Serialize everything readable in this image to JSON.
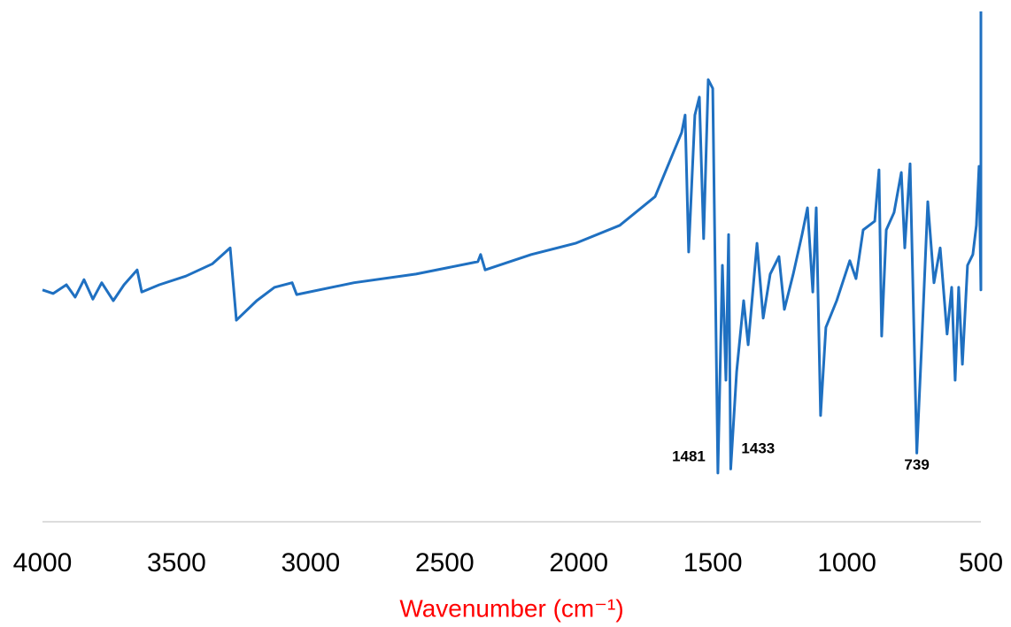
{
  "chart_data": {
    "type": "line",
    "xlabel": "Wavenumber (cm⁻¹)",
    "xlim": [
      4000,
      500
    ],
    "xticks": [
      4000,
      3500,
      3000,
      2500,
      2000,
      1500,
      1000,
      500
    ],
    "ylim": [
      0,
      100
    ],
    "color": "#1f70c1",
    "x": [
      4000,
      3960,
      3911,
      3878,
      3845,
      3812,
      3779,
      3736,
      3696,
      3647,
      3630,
      3564,
      3465,
      3366,
      3300,
      3277,
      3201,
      3135,
      3069,
      3052,
      2838,
      2607,
      2376,
      2366,
      2349,
      2177,
      2012,
      1847,
      1715,
      1616,
      1603,
      1590,
      1567,
      1550,
      1534,
      1517,
      1500,
      1481,
      1464,
      1451,
      1441,
      1433,
      1411,
      1385,
      1368,
      1335,
      1312,
      1286,
      1253,
      1233,
      1200,
      1167,
      1147,
      1127,
      1114,
      1098,
      1078,
      1038,
      989,
      966,
      939,
      896,
      880,
      870,
      853,
      824,
      797,
      784,
      764,
      739,
      721,
      698,
      675,
      652,
      626,
      609,
      596,
      583,
      569,
      550,
      530,
      517,
      507,
      500,
      500
    ],
    "values": [
      45.2,
      44.5,
      46.2,
      43.8,
      47.2,
      43.4,
      46.6,
      43.1,
      46.2,
      49.1,
      44.8,
      46.2,
      47.9,
      50.3,
      53.4,
      39.3,
      43.1,
      45.7,
      46.6,
      44.3,
      46.6,
      48.3,
      50.7,
      52.1,
      49.1,
      52.1,
      54.3,
      57.8,
      63.4,
      75.9,
      79.3,
      52.6,
      79.3,
      82.8,
      55.2,
      86.2,
      84.5,
      9.5,
      50.0,
      27.6,
      56.0,
      10.3,
      29.3,
      43.1,
      34.5,
      54.3,
      39.7,
      48.3,
      51.7,
      41.4,
      48.3,
      56.0,
      61.2,
      44.8,
      61.2,
      20.7,
      37.9,
      43.1,
      50.9,
      47.4,
      56.9,
      58.6,
      68.6,
      36.2,
      56.9,
      60.3,
      68.1,
      53.4,
      69.8,
      13.4,
      34.5,
      62.4,
      46.6,
      53.4,
      36.6,
      45.7,
      27.6,
      45.7,
      30.7,
      50.0,
      52.1,
      57.8,
      69.3,
      45.2,
      99.5
    ],
    "annotations": [
      {
        "label": "1481",
        "x": 1481,
        "position": "left"
      },
      {
        "label": "1433",
        "x": 1433,
        "position": "right"
      },
      {
        "label": "739",
        "x": 739,
        "position": "below"
      }
    ]
  }
}
